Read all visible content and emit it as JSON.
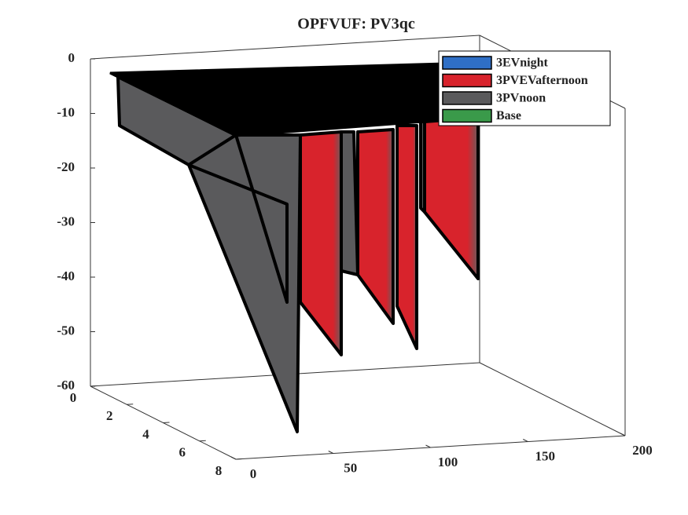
{
  "chart_data": {
    "type": "surface3d",
    "title": "OPFVUF: PV3qc",
    "series": [
      {
        "name": "3EVnight",
        "color": "#2f6fc6"
      },
      {
        "name": "3PVEVafternoon",
        "color": "#d8232c"
      },
      {
        "name": "3PVnoon",
        "color": "#5a5a5c"
      },
      {
        "name": "Base",
        "color": "#3a9a4a"
      }
    ],
    "xlim": [
      0,
      200
    ],
    "xticks": [
      0,
      50,
      100,
      150,
      200
    ],
    "ylim": [
      0,
      8
    ],
    "yticks": [
      0,
      2,
      4,
      6,
      8
    ],
    "zlim": [
      -60,
      0
    ],
    "zticks": [
      0,
      -10,
      -20,
      -30,
      -40,
      -50,
      -60
    ],
    "legend": "top-right"
  }
}
